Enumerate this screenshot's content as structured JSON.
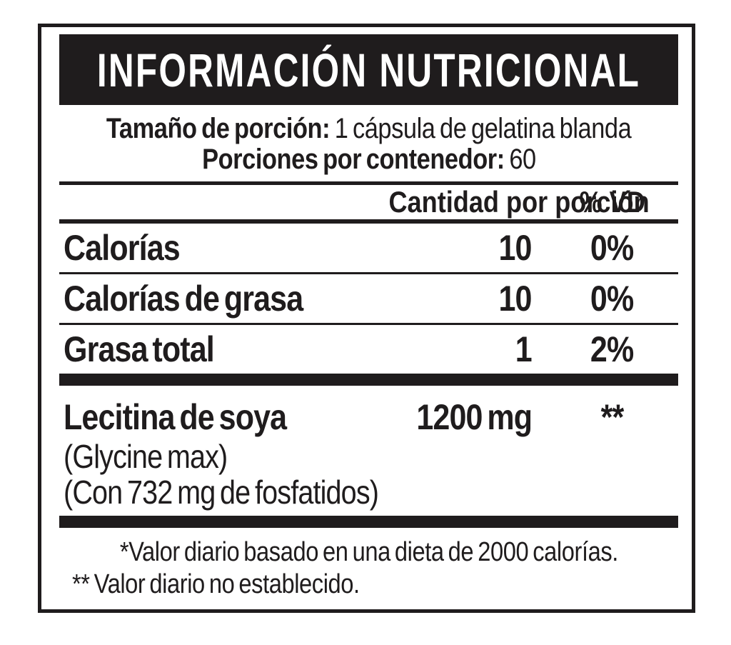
{
  "label": {
    "title": "INFORMACIÓN NUTRICIONAL",
    "serving": {
      "size_label": "Tamaño de porción:",
      "size_value": "1 cápsula de gelatina blanda",
      "count_label": "Porciones por contenedor:",
      "count_value": "60"
    },
    "columns": {
      "amount_header": "Cantidad por porción",
      "dv_header": "% VD"
    },
    "rows": [
      {
        "name": "Calorías",
        "amount": "10",
        "dv": "0%"
      },
      {
        "name": "Calorías de grasa",
        "amount": "10",
        "dv": "0%"
      },
      {
        "name": "Grasa total",
        "amount": "1",
        "dv": "2%"
      }
    ],
    "supplement": {
      "name": "Lecitina de soya",
      "amount": "1200 mg",
      "dv": "**",
      "notes": [
        "(Glycine max)",
        "(Con 732 mg de fosfatidos)"
      ]
    },
    "footnotes": [
      "*Valor diario basado en una dieta de 2000 calorías.",
      "** Valor diario no establecido."
    ],
    "colors": {
      "ink": "#1f1c1d",
      "background": "#ffffff"
    }
  }
}
